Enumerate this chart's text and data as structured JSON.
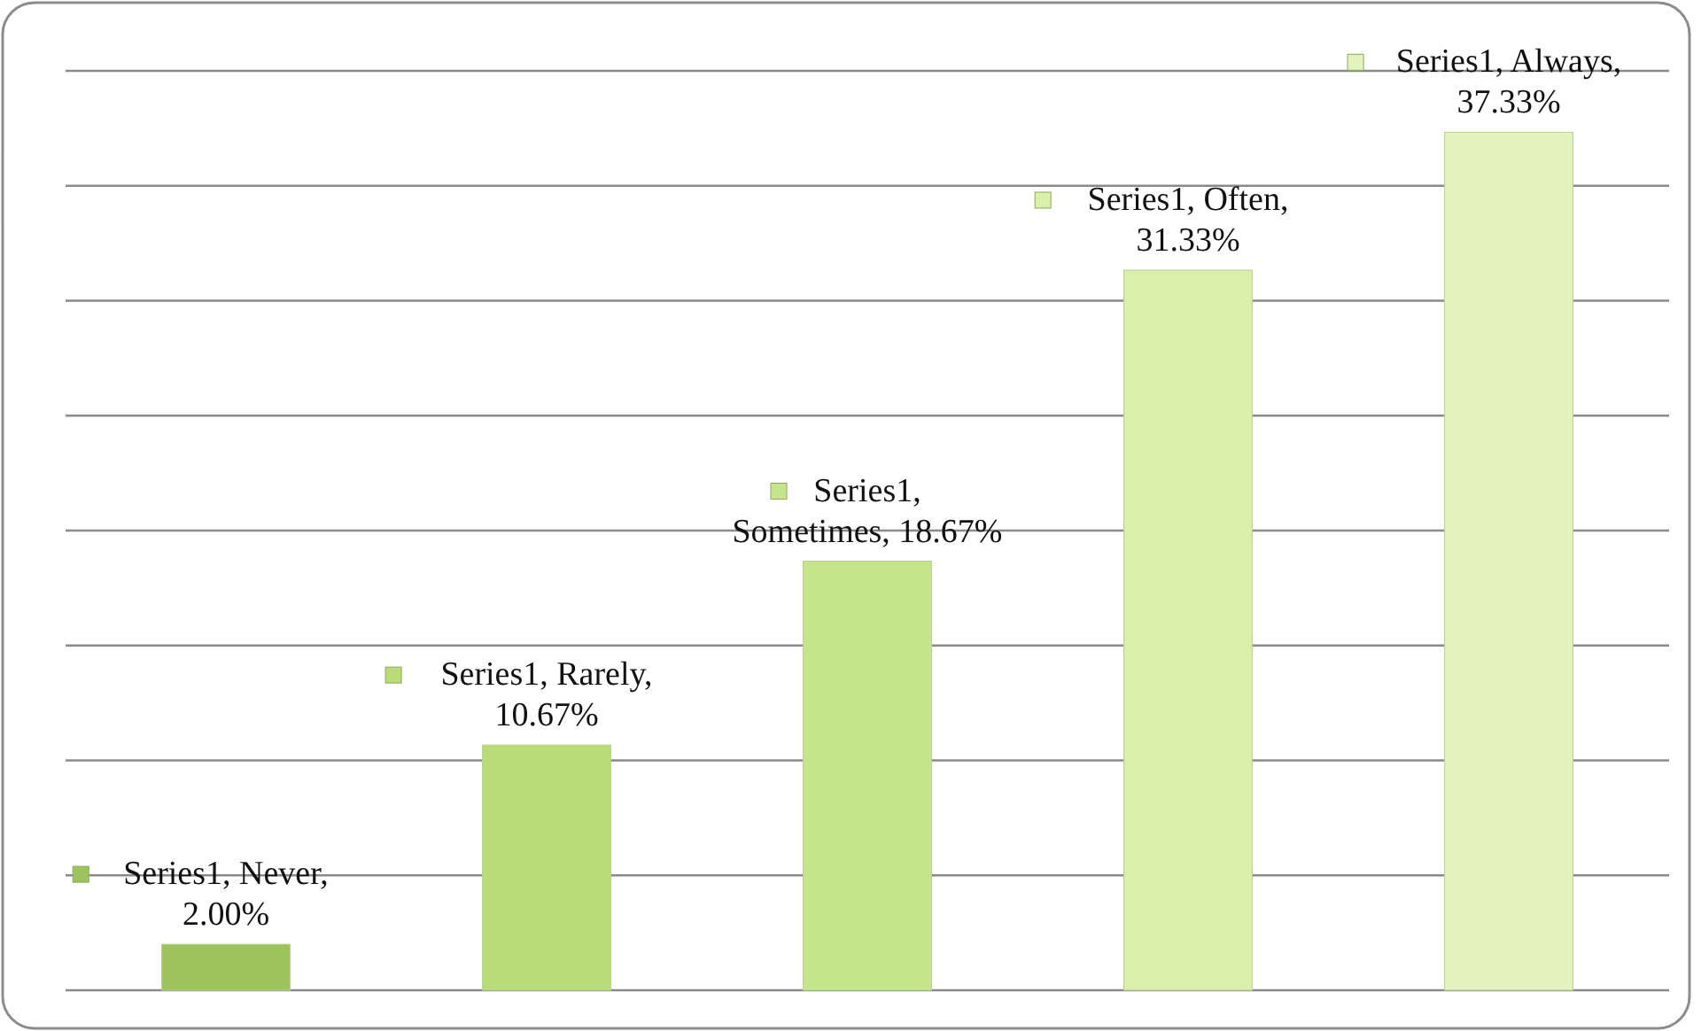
{
  "chart_data": {
    "type": "bar",
    "categories": [
      null,
      null,
      null,
      null,
      null
    ],
    "values": [
      2.0,
      10.67,
      18.67,
      31.33,
      37.33
    ],
    "colors": [
      "#9dc45a",
      "#b9dc78",
      "#c6e48a",
      "#d9efaa",
      "#e2f3bd"
    ],
    "value_labels": [
      "Series1, Never, 2.00%",
      "Series1, Rarely, 10.67%",
      "Series1, Sometimes, 18.67%",
      "Series1, Often, 31.33%",
      "Series1, Always, 37.33%"
    ],
    "ylim": [
      0,
      40
    ],
    "yticks": [
      {
        "value": 0,
        "label": null
      },
      {
        "value": 5,
        "label": null
      },
      {
        "value": 10,
        "label": null
      },
      {
        "value": 15,
        "label": null
      },
      {
        "value": 20,
        "label": null
      },
      {
        "value": 25,
        "label": null
      },
      {
        "value": 30,
        "label": null
      },
      {
        "value": 35,
        "label": null
      },
      {
        "value": 40,
        "label": null
      }
    ],
    "grid": "y"
  }
}
